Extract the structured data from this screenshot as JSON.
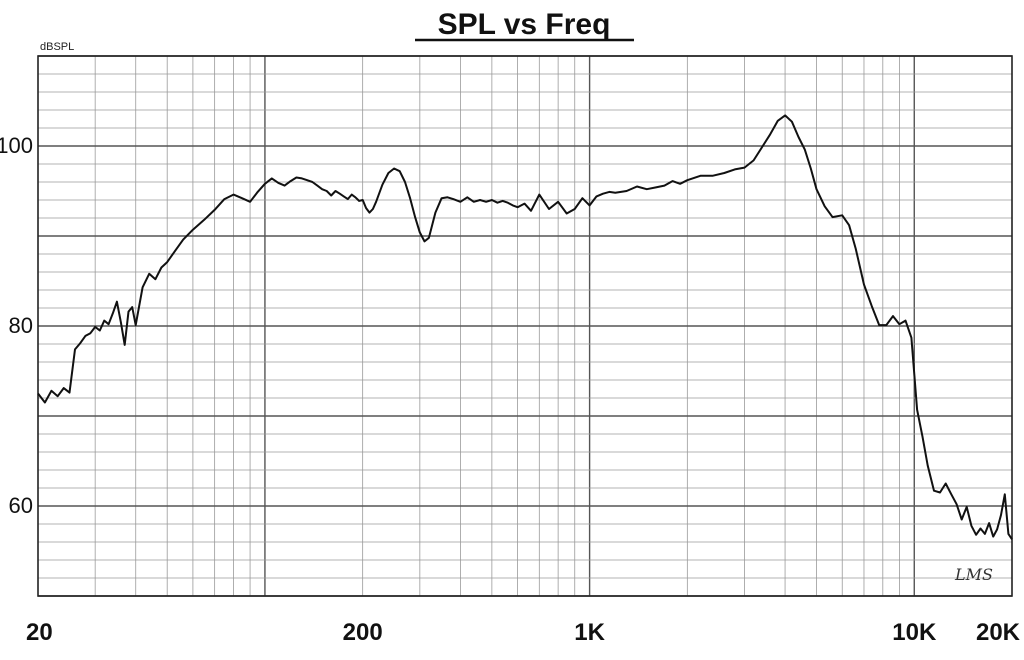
{
  "chart_data": {
    "type": "line",
    "title": "SPL vs Freq",
    "ylabel": "dBSPL",
    "xlabel": "",
    "xscale": "log",
    "xlim": [
      20,
      20000
    ],
    "ylim": [
      50,
      110
    ],
    "grid": true,
    "x_tick_labels": [
      {
        "value": 20,
        "label": "20"
      },
      {
        "value": 200,
        "label": "200"
      },
      {
        "value": 1000,
        "label": "1K"
      },
      {
        "value": 10000,
        "label": "10K"
      },
      {
        "value": 20000,
        "label": "20K"
      }
    ],
    "y_tick_labels": [
      {
        "value": 100,
        "label": "100"
      },
      {
        "value": 80,
        "label": "80"
      },
      {
        "value": 60,
        "label": "60"
      }
    ],
    "annotation": "LMS",
    "series": [
      {
        "x": [
          20,
          21,
          22,
          23,
          24,
          25,
          26,
          27,
          28,
          29,
          30,
          31,
          32,
          33,
          34,
          35,
          36,
          37,
          38,
          39,
          40,
          42,
          44,
          46,
          48,
          50,
          53,
          56,
          60,
          65,
          70,
          75,
          80,
          85,
          90,
          95,
          100,
          105,
          110,
          115,
          120,
          125,
          130,
          135,
          140,
          145,
          150,
          155,
          160,
          165,
          170,
          175,
          180,
          185,
          190,
          195,
          200,
          205,
          210,
          215,
          220,
          230,
          240,
          250,
          260,
          270,
          280,
          290,
          300,
          310,
          320,
          335,
          350,
          365,
          380,
          400,
          420,
          440,
          460,
          480,
          500,
          520,
          540,
          560,
          580,
          600,
          630,
          660,
          700,
          750,
          800,
          850,
          900,
          950,
          1000,
          1050,
          1100,
          1150,
          1200,
          1300,
          1400,
          1500,
          1600,
          1700,
          1800,
          1900,
          2000,
          2200,
          2400,
          2600,
          2800,
          3000,
          3200,
          3400,
          3600,
          3800,
          4000,
          4200,
          4400,
          4600,
          4800,
          5000,
          5300,
          5600,
          6000,
          6300,
          6600,
          7000,
          7400,
          7800,
          8200,
          8600,
          9000,
          9400,
          9800,
          10200,
          10600,
          11000,
          11500,
          12000,
          12500,
          13000,
          13500,
          14000,
          14500,
          15000,
          15500,
          16000,
          16500,
          17000,
          17500,
          18000,
          18500,
          19000,
          19500,
          20000
        ],
        "y": [
          72.5,
          71.5,
          72.8,
          72.2,
          73.1,
          72.6,
          77.4,
          78.1,
          78.9,
          79.2,
          79.9,
          79.5,
          80.6,
          80.2,
          81.4,
          82.7,
          80.4,
          77.9,
          81.6,
          82.1,
          80.1,
          84.3,
          85.8,
          85.2,
          86.5,
          87.1,
          88.4,
          89.6,
          90.7,
          91.8,
          92.9,
          94.1,
          94.6,
          94.2,
          93.8,
          94.9,
          95.8,
          96.4,
          95.9,
          95.6,
          96.1,
          96.5,
          96.4,
          96.2,
          96.0,
          95.6,
          95.2,
          95.0,
          94.5,
          95.0,
          94.7,
          94.4,
          94.1,
          94.6,
          94.3,
          93.9,
          94.0,
          93.1,
          92.6,
          93.0,
          93.8,
          95.7,
          97.0,
          97.5,
          97.2,
          96.0,
          94.2,
          92.1,
          90.4,
          89.4,
          89.8,
          92.6,
          94.2,
          94.3,
          94.1,
          93.8,
          94.3,
          93.8,
          94.0,
          93.8,
          94.0,
          93.7,
          93.9,
          93.7,
          93.4,
          93.2,
          93.6,
          92.8,
          94.6,
          93.0,
          93.8,
          92.5,
          93.0,
          94.2,
          93.4,
          94.4,
          94.7,
          94.9,
          94.8,
          95.0,
          95.5,
          95.2,
          95.4,
          95.6,
          96.1,
          95.8,
          96.2,
          96.7,
          96.7,
          97.0,
          97.4,
          97.6,
          98.4,
          99.9,
          101.3,
          102.8,
          103.4,
          102.7,
          101.0,
          99.6,
          97.5,
          95.2,
          93.3,
          92.1,
          92.3,
          91.2,
          88.6,
          84.6,
          82.2,
          80.1,
          80.1,
          81.1,
          80.2,
          80.6,
          78.7,
          70.7,
          67.7,
          64.5,
          61.7,
          61.5,
          62.5,
          61.3,
          60.2,
          58.5,
          59.9,
          57.8,
          56.8,
          57.5,
          56.9,
          58.1,
          56.6,
          57.4,
          59.0,
          61.3,
          56.9,
          56.3
        ]
      }
    ]
  }
}
